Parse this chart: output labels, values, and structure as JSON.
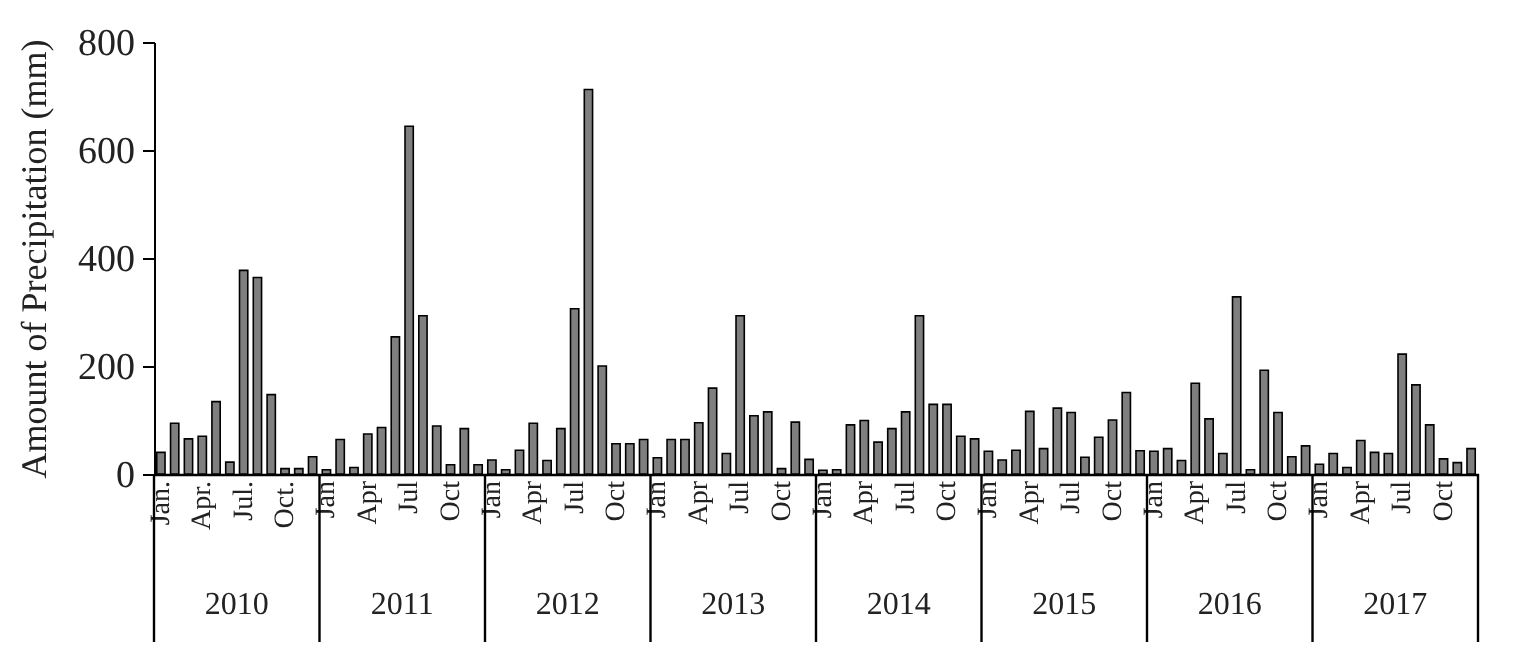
{
  "chart_data": {
    "type": "bar",
    "ylabel": "Amount of Precipitation (mm)",
    "categories": [
      "Jan.",
      null,
      null,
      "Apr.",
      null,
      null,
      "Jul.",
      null,
      null,
      "Oct.",
      null,
      null,
      "Jan",
      null,
      null,
      "Apr",
      null,
      null,
      "Jul",
      null,
      null,
      "Oct",
      null,
      null,
      "Jan",
      null,
      null,
      "Apr",
      null,
      null,
      "Jul",
      null,
      null,
      "Oct",
      null,
      null,
      "Jan",
      null,
      null,
      "Apr",
      null,
      null,
      "Jul",
      null,
      null,
      "Oct",
      null,
      null,
      "Jan",
      null,
      null,
      "Apr",
      null,
      null,
      "Jul",
      null,
      null,
      "Oct",
      null,
      null,
      "Jan",
      null,
      null,
      "Apr",
      null,
      null,
      "Jul",
      null,
      null,
      "Oct",
      null,
      null,
      "Jan",
      null,
      null,
      "Apr",
      null,
      null,
      "Jul",
      null,
      null,
      "Oct",
      null,
      null,
      "Jan",
      null,
      null,
      "Apr",
      null,
      null,
      "Jul",
      null,
      null,
      "Oct",
      null,
      null
    ],
    "values": [
      40,
      94,
      65,
      70,
      134,
      22,
      377,
      364,
      147,
      10,
      10,
      32,
      8,
      64,
      12,
      74,
      86,
      254,
      644,
      293,
      89,
      17,
      84,
      17,
      26,
      8,
      44,
      94,
      25,
      84,
      306,
      712,
      200,
      56,
      56,
      64,
      30,
      64,
      64,
      95,
      159,
      38,
      293,
      108,
      115,
      10,
      96,
      27,
      7,
      8,
      91,
      99,
      59,
      84,
      115,
      293,
      129,
      129,
      70,
      65,
      42,
      26,
      44,
      116,
      47,
      122,
      114,
      31,
      68,
      100,
      151,
      43,
      42,
      47,
      25,
      168,
      102,
      38,
      328,
      8,
      192,
      114,
      32,
      52,
      18,
      38,
      12,
      62,
      40,
      38,
      222,
      165,
      91,
      28,
      21,
      47
    ],
    "color": "#7f7f7f",
    "ylim": [
      0,
      800
    ],
    "yticks": [
      0,
      200,
      400,
      600,
      800
    ],
    "annotations": [
      "2010",
      "2011",
      "2012",
      "2013",
      "2014",
      "2015",
      "2016",
      "2017"
    ]
  }
}
